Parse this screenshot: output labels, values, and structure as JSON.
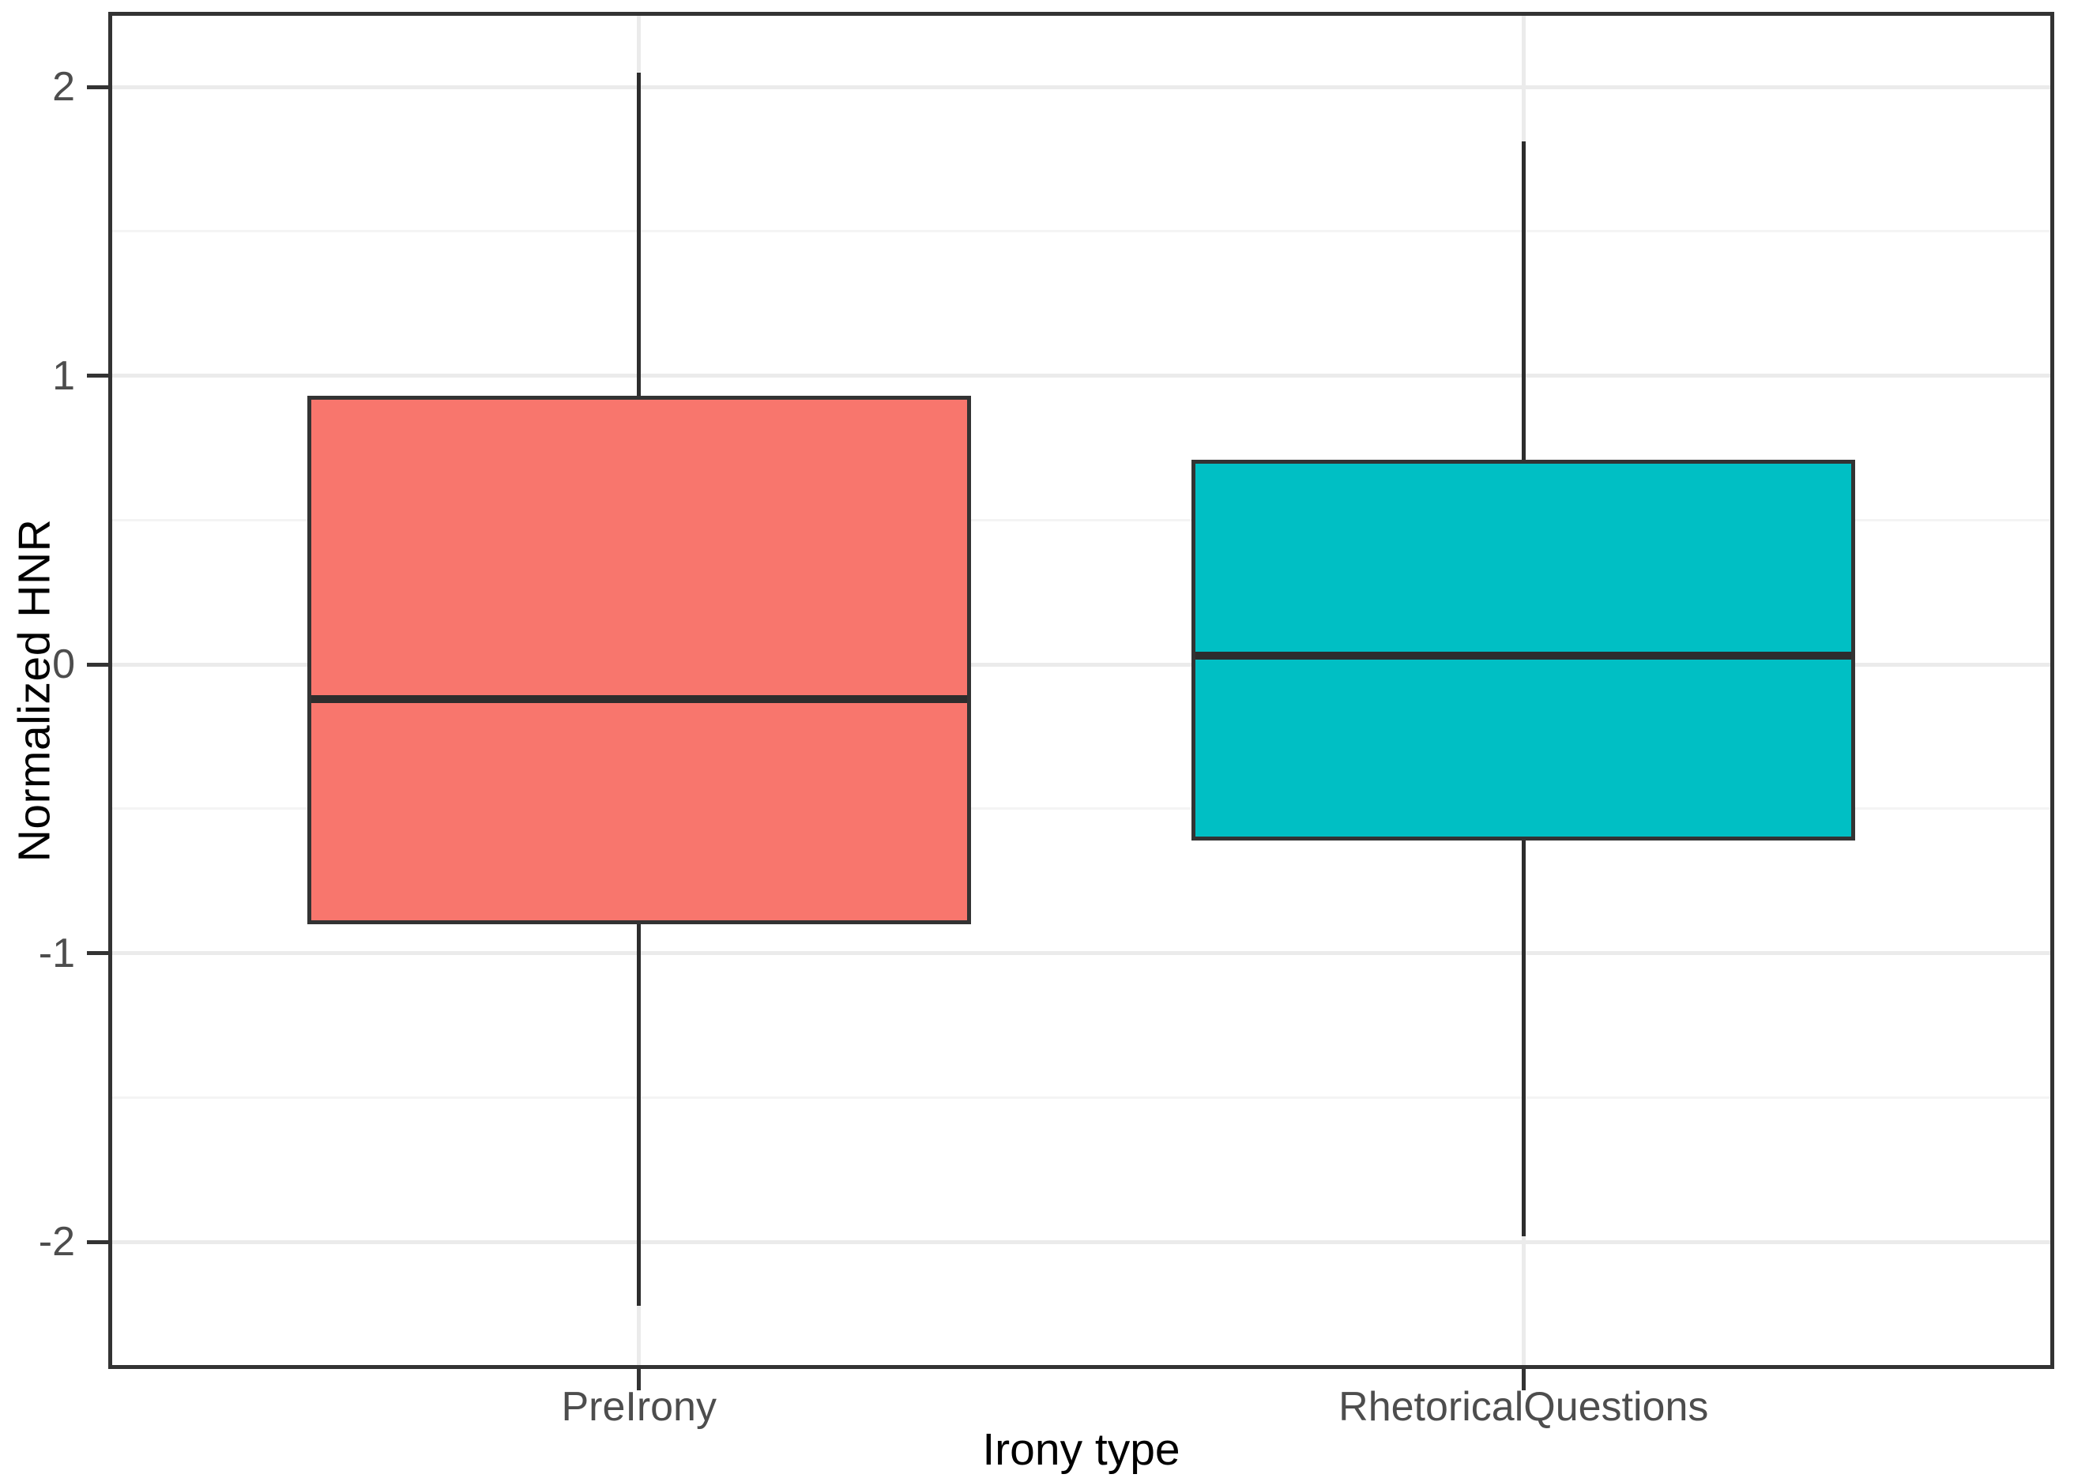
{
  "chart_data": {
    "type": "boxplot",
    "title": "",
    "xlabel": "Irony type",
    "ylabel": "Normalized HNR",
    "categories": [
      "PreIrony",
      "RhetoricalQuestions"
    ],
    "series": [
      {
        "name": "PreIrony",
        "color": "#F8766D",
        "whisker_low": -2.22,
        "q1": -0.9,
        "median": -0.12,
        "q3": 0.93,
        "whisker_high": 2.05
      },
      {
        "name": "RhetoricalQuestions",
        "color": "#00BFC4",
        "whisker_low": -1.98,
        "q1": -0.61,
        "median": 0.03,
        "q3": 0.71,
        "whisker_high": 1.81
      }
    ],
    "ylim": [
      -2.44,
      2.26
    ],
    "yticks": [
      2,
      1,
      0,
      -1,
      -2
    ],
    "y_tick_labels": [
      "2",
      "1",
      "0",
      "-1",
      "-2"
    ],
    "minor_gridlines": [
      1.5,
      0.5,
      -0.5,
      -1.5
    ],
    "grid": "on",
    "legend": "none",
    "colors": {
      "box_outline": "#333333",
      "median": "#2d2d2d",
      "grid_major": "#EBEBEB",
      "grid_minor": "#F4F4F4",
      "panel_border": "#333333",
      "tick": "#333333",
      "tick_label": "#4D4D4D",
      "axis_title": "#000000",
      "background": "#FFFFFF"
    }
  }
}
